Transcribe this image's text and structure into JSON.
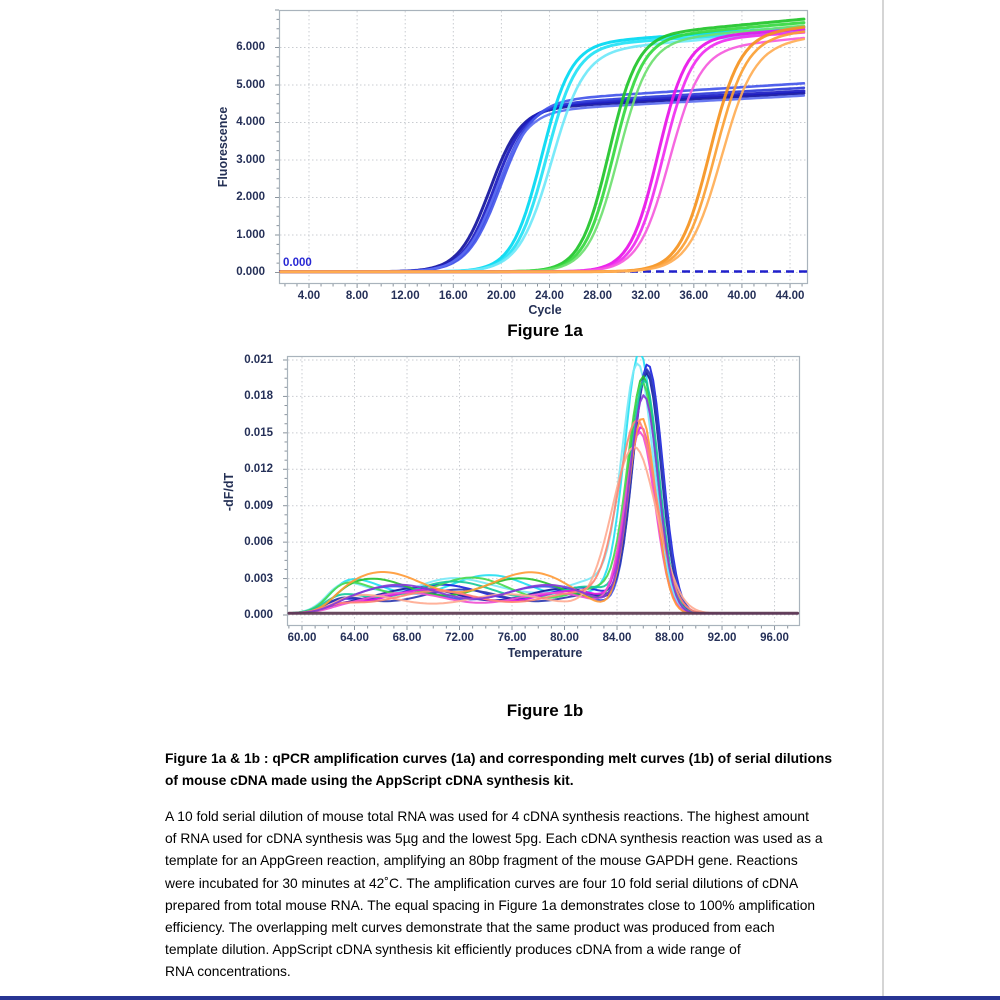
{
  "page": {
    "background": "#ffffff"
  },
  "chart_data": [
    {
      "id": "amplification",
      "type": "line",
      "subtype": "qPCR amplification curves (sigmoid)",
      "title": "Figure 1a",
      "xlabel": "Cycle",
      "ylabel": "Fluorescence",
      "xlim": [
        1.505,
        45.494
      ],
      "ylim": [
        -0.3067,
        7.0
      ],
      "grid": "dotted",
      "legend": "none",
      "xticks": [
        {
          "v": 4,
          "label": "4.00"
        },
        {
          "v": 8,
          "label": "8.00"
        },
        {
          "v": 12,
          "label": "12.00"
        },
        {
          "v": 16,
          "label": "16.00"
        },
        {
          "v": 20,
          "label": "20.00"
        },
        {
          "v": 24,
          "label": "24.00"
        },
        {
          "v": 28,
          "label": "28.00"
        },
        {
          "v": 32,
          "label": "32.00"
        },
        {
          "v": 36,
          "label": "36.00"
        },
        {
          "v": 40,
          "label": "40.00"
        },
        {
          "v": 44,
          "label": "44.00"
        }
      ],
      "yticks": [
        {
          "v": 0,
          "label": "0.000"
        },
        {
          "v": 1,
          "label": "1.000"
        },
        {
          "v": 2,
          "label": "2.000"
        },
        {
          "v": 3,
          "label": "3.000"
        },
        {
          "v": 4,
          "label": "4.000"
        },
        {
          "v": 5,
          "label": "5.000"
        },
        {
          "v": 6,
          "label": "6.000"
        }
      ],
      "threshold": {
        "y": 0,
        "label": "0.000",
        "color": "#2020cc",
        "dashed": true
      },
      "estimated_ct_values": {
        "dilution-1": 16.0,
        "dilution-2": 20.5,
        "dilution-3": 26.0,
        "dilution-4": 30.3,
        "dilution-5": 34.6
      },
      "group_colors": {
        "dilution-1": "navy blue",
        "dilution-2": "cyan",
        "dilution-3": "green",
        "dilution-4": "magenta",
        "dilution-5": "orange"
      },
      "series": [
        {
          "group": "dilution-1",
          "color": "#12129e",
          "mid": 19.0,
          "k": 0.78,
          "plateau": 4.32,
          "drift": 0.017,
          "lw": 3
        },
        {
          "group": "dilution-1",
          "color": "#1a1ac2",
          "mid": 19.35,
          "k": 0.78,
          "plateau": 4.38,
          "drift": 0.017,
          "lw": 3
        },
        {
          "group": "dilution-1",
          "color": "#2c39d8",
          "mid": 19.65,
          "k": 0.76,
          "plateau": 4.42,
          "drift": 0.019,
          "lw": 2.6
        },
        {
          "group": "dilution-1",
          "color": "#4355ea",
          "mid": 19.9,
          "k": 0.74,
          "plateau": 4.52,
          "drift": 0.02,
          "lw": 2.6
        },
        {
          "group": "dilution-1",
          "color": "#5b6cf0",
          "mid": 19.5,
          "k": 0.76,
          "plateau": 4.26,
          "drift": 0.017,
          "lw": 2.4
        },
        {
          "group": "dilution-2",
          "color": "#00d9f2",
          "mid": 23.3,
          "k": 0.82,
          "plateau": 6.05,
          "drift": 0.022,
          "lw": 3
        },
        {
          "group": "dilution-2",
          "color": "#23e2f5",
          "mid": 23.7,
          "k": 0.8,
          "plateau": 6.0,
          "drift": 0.02,
          "lw": 3
        },
        {
          "group": "dilution-2",
          "color": "#6fe8f8",
          "mid": 24.15,
          "k": 0.74,
          "plateau": 5.85,
          "drift": 0.027,
          "lw": 2.6
        },
        {
          "group": "dilution-3",
          "color": "#1fc429",
          "mid": 28.9,
          "k": 0.85,
          "plateau": 6.25,
          "drift": 0.03,
          "lw": 3
        },
        {
          "group": "dilution-3",
          "color": "#35d93f",
          "mid": 29.3,
          "k": 0.83,
          "plateau": 6.2,
          "drift": 0.028,
          "lw": 3
        },
        {
          "group": "dilution-3",
          "color": "#6ee070",
          "mid": 29.7,
          "k": 0.8,
          "plateau": 6.1,
          "drift": 0.03,
          "lw": 2.4
        },
        {
          "group": "dilution-4",
          "color": "#e812e8",
          "mid": 33.0,
          "k": 0.85,
          "plateau": 6.2,
          "drift": 0.022,
          "lw": 3
        },
        {
          "group": "dilution-4",
          "color": "#f02cf0",
          "mid": 33.45,
          "k": 0.83,
          "plateau": 6.15,
          "drift": 0.02,
          "lw": 2.8
        },
        {
          "group": "dilution-4",
          "color": "#f55bdd",
          "mid": 33.95,
          "k": 0.78,
          "plateau": 5.9,
          "drift": 0.03,
          "lw": 2.4
        },
        {
          "group": "dilution-5",
          "color": "#f5921e",
          "mid": 37.3,
          "k": 0.8,
          "plateau": 6.3,
          "drift": 0.03,
          "lw": 3
        },
        {
          "group": "dilution-5",
          "color": "#fb9f33",
          "mid": 37.75,
          "k": 0.78,
          "plateau": 6.2,
          "drift": 0.03,
          "lw": 2.6
        },
        {
          "group": "dilution-5",
          "color": "#ffae55",
          "mid": 38.25,
          "k": 0.74,
          "plateau": 6.0,
          "drift": 0.035,
          "lw": 2.4
        }
      ]
    },
    {
      "id": "melt",
      "type": "line",
      "subtype": "qPCR melt curves",
      "title": "Figure 1b",
      "xlabel": "Temperature",
      "ylabel": "-dF/dT",
      "xlim": [
        58.857,
        97.94
      ],
      "ylim": [
        -0.000906,
        0.021329
      ],
      "grid": "dotted",
      "legend": "none",
      "peak_temperature": 86.0,
      "peak_height_range": [
        0.0134,
        0.021
      ],
      "xticks": [
        {
          "v": 60,
          "label": "60.00"
        },
        {
          "v": 64,
          "label": "64.00"
        },
        {
          "v": 68,
          "label": "68.00"
        },
        {
          "v": 72,
          "label": "72.00"
        },
        {
          "v": 76,
          "label": "76.00"
        },
        {
          "v": 80,
          "label": "80.00"
        },
        {
          "v": 84,
          "label": "84.00"
        },
        {
          "v": 88,
          "label": "88.00"
        },
        {
          "v": 92,
          "label": "92.00"
        },
        {
          "v": 96,
          "label": "96.00"
        }
      ],
      "yticks": [
        {
          "v": 0,
          "label": "0.000"
        },
        {
          "v": 0.003,
          "label": "0.003"
        },
        {
          "v": 0.006,
          "label": "0.006"
        },
        {
          "v": 0.009,
          "label": "0.009"
        },
        {
          "v": 0.012,
          "label": "0.012"
        },
        {
          "v": 0.015,
          "label": "0.015"
        },
        {
          "v": 0.018,
          "label": "0.018"
        },
        {
          "v": 0.021,
          "label": "0.021"
        }
      ],
      "series": [
        {
          "color": "#25e0f2",
          "H": 0.021,
          "Tm": 85.75,
          "w": 1.15,
          "b": 0.0024,
          "ph": 0
        },
        {
          "color": "#79e9f7",
          "H": 0.02,
          "Tm": 85.6,
          "w": 1.2,
          "b": 0.0027,
          "ph": 1,
          "dip": {
            "a": -0.0008,
            "t": 73.5,
            "sw": 2.2
          }
        },
        {
          "color": "#1d24dd",
          "H": 0.0204,
          "Tm": 86.35,
          "w": 1.12,
          "b": 0.0018,
          "ph": 2
        },
        {
          "color": "#141b9e",
          "H": 0.0197,
          "Tm": 86.25,
          "w": 1.1,
          "b": 0.0016,
          "ph": 3
        },
        {
          "color": "#3f51e8",
          "H": 0.02,
          "Tm": 86.3,
          "w": 1.1,
          "b": 0.0017,
          "ph": 4
        },
        {
          "color": "#2e3ab0",
          "H": 0.0199,
          "Tm": 86.3,
          "w": 1.08,
          "b": 0.0015,
          "ph": 1.2
        },
        {
          "color": "#28c22e",
          "H": 0.0192,
          "Tm": 86.0,
          "w": 1.12,
          "b": 0.0022,
          "ph": 5
        },
        {
          "color": "#49d94f",
          "H": 0.0186,
          "Tm": 85.95,
          "w": 1.15,
          "b": 0.0024,
          "ph": 0.5,
          "dip": {
            "a": -0.0005,
            "t": 76.5,
            "sw": 2.5
          }
        },
        {
          "color": "#17c99b",
          "H": 0.019,
          "Tm": 86.1,
          "w": 1.1,
          "b": 0.002,
          "ph": 1.5
        },
        {
          "color": "#e316e3",
          "H": 0.0152,
          "Tm": 85.85,
          "w": 1.1,
          "b": 0.0015,
          "ph": 2.5
        },
        {
          "color": "#f04fd2",
          "H": 0.0148,
          "Tm": 85.75,
          "w": 1.15,
          "b": 0.0013,
          "ph": 3.5
        },
        {
          "color": "#ff9b38",
          "H": 0.016,
          "Tm": 85.9,
          "w": 1.05,
          "b": 0.0026,
          "ph": 4.5,
          "bEnd": 82.5
        },
        {
          "color": "#ffab92",
          "H": 0.0134,
          "Tm": 85.35,
          "w": 1.7,
          "b": 0.0012,
          "ph": 5.5
        },
        {
          "color": "#ff8773",
          "H": 0.0157,
          "Tm": 85.55,
          "w": 1.45,
          "b": 0.0014,
          "ph": 2.2
        },
        {
          "color": "#8639d6",
          "H": 0.0178,
          "Tm": 86.05,
          "w": 1.1,
          "b": 0.0018,
          "ph": 3.8
        },
        {
          "color": "#5c3a50",
          "flat": true
        }
      ]
    }
  ],
  "caption": {
    "heading_lines": [
      "Figure 1a & 1b : qPCR amplification curves (1a) and corresponding melt curves (1b) of serial dilutions",
      "of mouse cDNA made using the AppScript cDNA synthesis kit."
    ],
    "body_lines": [
      "A 10 fold serial dilution of mouse total RNA was used for 4 cDNA synthesis reactions. The highest amount",
      "of RNA used for cDNA synthesis was 5µg and the lowest 5pg. Each cDNA synthesis reaction was used as a",
      "template for an AppGreen reaction, amplifying an 80bp fragment of the mouse GAPDH gene. Reactions",
      "were incubated for 30 minutes at 42˚C. The amplification curves are four 10 fold serial dilutions of cDNA",
      "prepared from total mouse RNA.  The equal spacing in Figure 1a demonstrates close to 100% amplification",
      "efficiency. The overlapping melt curves demonstrate that the same product was produced from each",
      "template dilution. AppScript cDNA synthesis kit efficiently produces cDNA from a wide range of",
      "RNA concentrations."
    ]
  },
  "colors": {
    "axis_text": "#253058",
    "plot_border": "#a9b3bc",
    "grid": "#c9ccd1",
    "threshold": "#2020cc",
    "page_edge_line": "#d5d5d5",
    "bottom_rule": "#283593"
  }
}
